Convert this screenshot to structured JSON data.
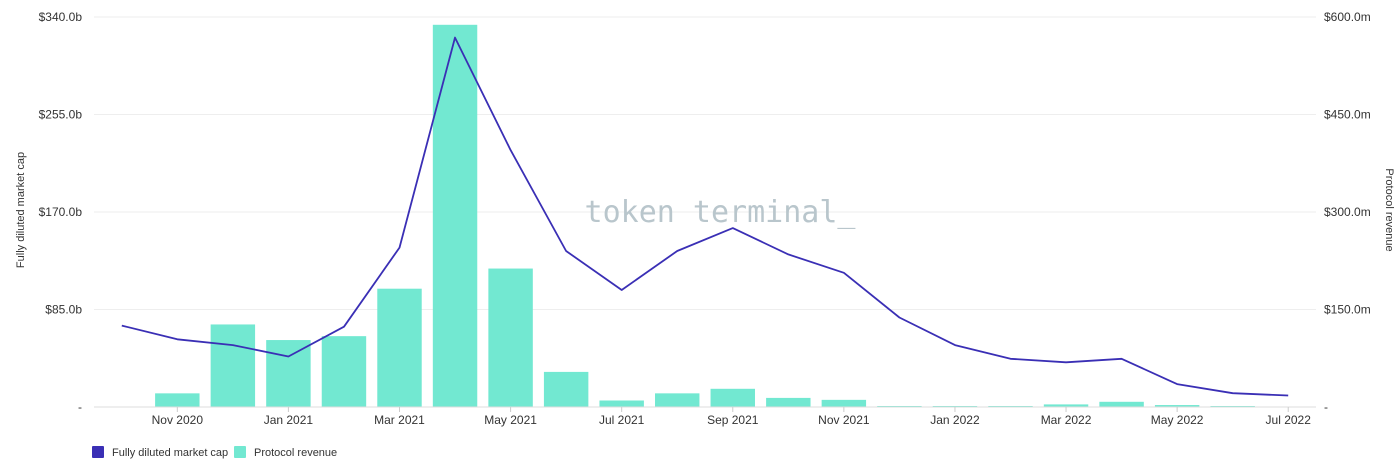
{
  "chart_data": {
    "type": "bar",
    "watermark": "token terminal_",
    "x": [
      "Oct 2020",
      "Nov 2020",
      "Dec 2020",
      "Jan 2021",
      "Feb 2021",
      "Mar 2021",
      "Apr 2021",
      "May 2021",
      "Jun 2021",
      "Jul 2021",
      "Aug 2021",
      "Sep 2021",
      "Oct 2021",
      "Nov 2021",
      "Dec 2021",
      "Jan 2022",
      "Feb 2022",
      "Mar 2022",
      "Apr 2022",
      "May 2022",
      "Jun 2022",
      "Jul 2022"
    ],
    "x_tick_labels": [
      "Nov 2020",
      "Jan 2021",
      "Mar 2021",
      "May 2021",
      "Jul 2021",
      "Sep 2021",
      "Nov 2021",
      "Jan 2022",
      "Mar 2022",
      "May 2022",
      "Jul 2022"
    ],
    "ylabel_left": "Fully diluted market cap",
    "ylabel_right": "Protocol revenue",
    "y_left_ticks": [
      "-",
      "$85.0b",
      "$170.0b",
      "$255.0b",
      "$340.0b"
    ],
    "y_right_ticks": [
      "-",
      "$150.0m",
      "$300.0m",
      "$450.0m",
      "$600.0m"
    ],
    "ylim_left": [
      0,
      340
    ],
    "ylim_right": [
      0,
      600
    ],
    "grid": true,
    "legend_position": "bottom-left",
    "series": [
      {
        "name": "Fully diluted market cap",
        "type": "line",
        "axis": "left",
        "unit": "$b",
        "color": "#3a2fb5",
        "values": [
          71,
          59,
          54,
          44,
          70,
          139,
          322,
          224,
          136,
          102,
          136,
          156,
          133,
          117,
          78,
          54,
          42,
          39,
          42,
          20,
          12,
          10
        ]
      },
      {
        "name": "Protocol revenue",
        "type": "bar",
        "axis": "right",
        "unit": "$m",
        "color": "#72e8d1",
        "values": [
          0,
          21,
          127,
          103,
          109,
          182,
          588,
          213,
          54,
          10,
          21,
          28,
          14,
          11,
          1,
          1,
          1,
          4,
          8,
          3,
          1,
          0
        ]
      }
    ]
  }
}
